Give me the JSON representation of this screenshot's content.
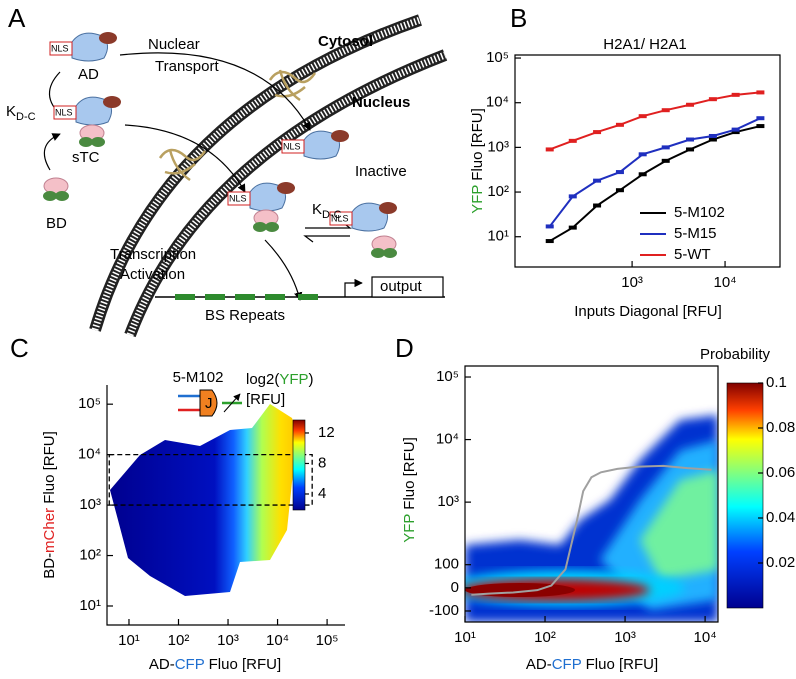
{
  "diagram": {
    "panel_label": "A",
    "nuclear_transport": [
      "Nuclear",
      "Transport"
    ],
    "cytosol": "Cytosol",
    "nucleus": "Nucleus",
    "ad": "AD",
    "stc": "sTC",
    "bd": "BD",
    "inactive": "Inactive",
    "kdc": [
      {
        "main": "K",
        "sub": "D-C"
      },
      {
        "main": "K",
        "sub": "D-C"
      }
    ],
    "nls": [
      "NLS",
      "NLS",
      "NLS",
      "NLS",
      "NLS"
    ],
    "transcription_activation": [
      "Transcription",
      "Activation"
    ],
    "output": "output",
    "bs_repeats": "BS Repeats"
  },
  "chart_data": [
    {
      "type": "line",
      "panel_label": "B",
      "title": "H2A1/ H2A1",
      "xlabel": "Inputs Diagonal [RFU]",
      "ylabel": [
        "YFP",
        " Fluo [RFU]"
      ],
      "ylabel_colors": [
        "#2ca02c",
        "#000000"
      ],
      "xscale": "log",
      "yscale": "log",
      "x": [
        130,
        230,
        420,
        740,
        1300,
        2300,
        4200,
        7400,
        13000,
        24000
      ],
      "xlim": [
        55,
        39000
      ],
      "xticks": [
        {
          "value": 1000,
          "label": "10³"
        },
        {
          "value": 10000,
          "label": "10⁴"
        }
      ],
      "ylim": [
        2.1,
        117000
      ],
      "yticks": [
        {
          "value": 10,
          "label": "10¹"
        },
        {
          "value": 100,
          "label": "10²"
        },
        {
          "value": 1000,
          "label": "10³"
        },
        {
          "value": 10000,
          "label": "10⁴"
        },
        {
          "value": 100000,
          "label": "10⁵"
        }
      ],
      "legend": "lower right",
      "series": [
        {
          "name": "5-M102",
          "color": "#000000",
          "values": [
            8,
            16,
            50,
            110,
            250,
            500,
            900,
            1500,
            2200,
            3000
          ]
        },
        {
          "name": "5-M15",
          "color": "#1f2fbf",
          "values": [
            17,
            80,
            180,
            280,
            700,
            1000,
            1500,
            1800,
            2500,
            4500
          ]
        },
        {
          "name": "5-WT",
          "color": "#e02020",
          "values": [
            900,
            1400,
            2200,
            3200,
            5000,
            6800,
            9000,
            12000,
            15000,
            17000
          ]
        }
      ]
    },
    {
      "type": "heatmap",
      "panel_label": "C",
      "xlabel": [
        "AD-",
        "CFP",
        " Fluo [RFU]"
      ],
      "xlabel_colors": [
        "#000000",
        "#1f6fd0",
        "#000000"
      ],
      "ylabel": [
        "BD-",
        "mCher",
        " Fluo [RFU]"
      ],
      "ylabel_colors": [
        "#000000",
        "#e02020",
        "#000000"
      ],
      "xscale": "log",
      "yscale": "log",
      "xlim": [
        3.6,
        230000
      ],
      "xticks": [
        {
          "value": 10,
          "label": "10¹"
        },
        {
          "value": 100,
          "label": "10²"
        },
        {
          "value": 1000,
          "label": "10³"
        },
        {
          "value": 10000,
          "label": "10⁴"
        },
        {
          "value": 100000,
          "label": "10⁵"
        }
      ],
      "ylim": [
        4.2,
        240000
      ],
      "yticks": [
        {
          "value": 10,
          "label": "10¹"
        },
        {
          "value": 100,
          "label": "10²"
        },
        {
          "value": 1000,
          "label": "10³"
        },
        {
          "value": 10000,
          "label": "10⁴"
        },
        {
          "value": 100000,
          "label": "10⁵"
        }
      ],
      "highlight_box": {
        "x": [
          4,
          50000
        ],
        "y": [
          1000,
          10000
        ]
      },
      "inset_label": "5-M102",
      "inset_symbol": "J",
      "colorbar": {
        "title": [
          "log2(",
          "YFP",
          ")"
        ],
        "title_colors": [
          "#000000",
          "#2ca02c",
          "#000000"
        ],
        "unit": "[RFU]",
        "lim": [
          1.9,
          13.7
        ],
        "ticks": [
          4,
          8,
          12
        ]
      }
    },
    {
      "type": "heatmap",
      "panel_label": "D",
      "xlabel": [
        "AD-",
        "CFP",
        " Fluo [RFU]"
      ],
      "xlabel_colors": [
        "#000000",
        "#1f6fd0",
        "#000000"
      ],
      "ylabel": [
        "YFP",
        " Fluo [RFU]"
      ],
      "ylabel_colors": [
        "#2ca02c",
        "#000000"
      ],
      "xscale": "log",
      "yscale": "symlog",
      "linthresh": 100,
      "linscale": 0.37,
      "xlim": [
        10,
        14500
      ],
      "xticks": [
        {
          "value": 10,
          "label": "10¹"
        },
        {
          "value": 100,
          "label": "10²"
        },
        {
          "value": 1000,
          "label": "10³"
        },
        {
          "value": 10000,
          "label": "10⁴"
        }
      ],
      "ylim": [
        -150,
        150000
      ],
      "yticks": [
        -100,
        0,
        100,
        {
          "value": 1000,
          "label": "10³"
        },
        {
          "value": 10000,
          "label": "10⁴"
        },
        {
          "value": 100000,
          "label": "10⁵"
        }
      ],
      "series": [
        {
          "color": "#a0a0a0",
          "x": [
            12,
            20,
            40,
            80,
            120,
            180,
            250,
            300,
            380,
            500,
            800,
            1500,
            3000,
            6000,
            12000
          ],
          "values": [
            -30,
            -25,
            -20,
            -10,
            10,
            80,
            500,
            1500,
            2500,
            3000,
            3400,
            3700,
            3800,
            3500,
            3300
          ]
        }
      ],
      "colorbar": {
        "title": "Probability",
        "lim": [
          0,
          0.1
        ],
        "ticks": [
          0.02,
          0.04,
          0.06,
          0.08,
          0.1
        ]
      }
    }
  ]
}
